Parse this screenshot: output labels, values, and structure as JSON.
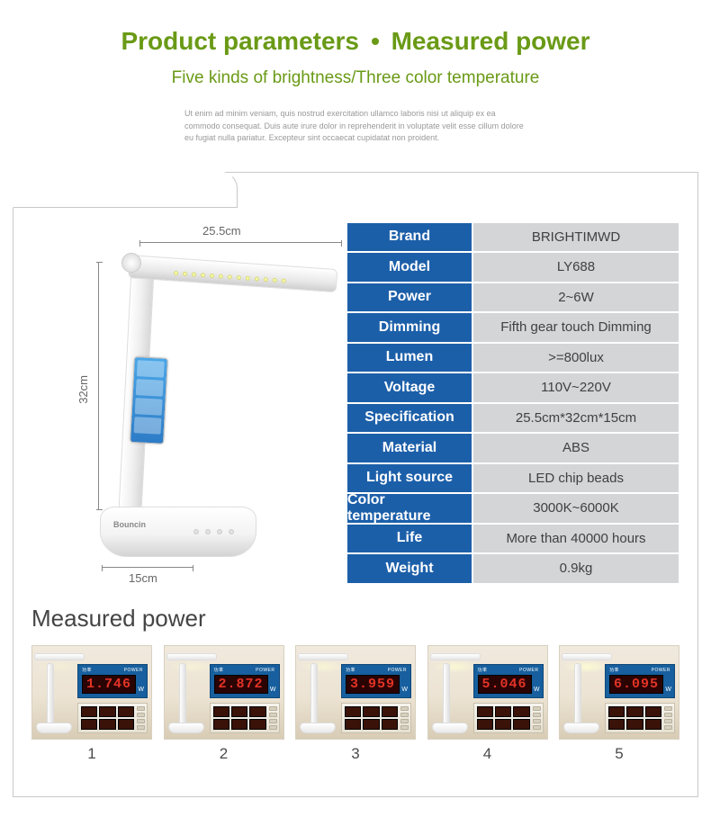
{
  "header": {
    "title_left": "Product parameters",
    "title_right": "Measured power",
    "title_color": "#6a9a16",
    "dot_color": "#6a9a16",
    "subtitle": "Five kinds of brightness/Three color temperature",
    "subtitle_color": "#6a9a16",
    "lorem": "Ut enim ad minim veniam, quis nostrud exercitation ullamco laboris nisi ut aliquip ex ea commodo consequat. Duis aute irure dolor in reprehenderit in voluptate velit esse cillum dolore eu fugiat nulla pariatur. Excepteur sint occaecat cupidatat non proident."
  },
  "dimensions": {
    "top": "25.5cm",
    "left": "32cm",
    "bottom": "15cm"
  },
  "spec": {
    "header_bg": "#1c5fa9",
    "header_fg": "#ffffff",
    "value_bg": "#d3d5d6",
    "value_fg": "#414141",
    "rows": [
      {
        "k": "Brand",
        "v": "BRIGHTIMWD"
      },
      {
        "k": "Model",
        "v": "LY688"
      },
      {
        "k": "Power",
        "v": "2~6W"
      },
      {
        "k": "Dimming",
        "v": "Fifth gear touch Dimming"
      },
      {
        "k": "Lumen",
        "v": ">=800lux"
      },
      {
        "k": "Voltage",
        "v": "110V~220V"
      },
      {
        "k": "Specification",
        "v": "25.5cm*32cm*15cm"
      },
      {
        "k": "Material",
        "v": "ABS"
      },
      {
        "k": "Light source",
        "v": "LED chip beads"
      },
      {
        "k": "Color temperature",
        "v": "3000K~6000K"
      },
      {
        "k": "Life",
        "v": "More than 40000 hours"
      },
      {
        "k": "Weight",
        "v": "0.9kg"
      }
    ]
  },
  "measured": {
    "title": "Measured power",
    "meter_label_left": "功率",
    "meter_label_right": "POWER",
    "digit_color": "#e23327",
    "items": [
      {
        "num": "1",
        "reading": "1.746",
        "glow": 0.35
      },
      {
        "num": "2",
        "reading": "2.872",
        "glow": 0.5
      },
      {
        "num": "3",
        "reading": "3.959",
        "glow": 0.65
      },
      {
        "num": "4",
        "reading": "5.046",
        "glow": 0.8
      },
      {
        "num": "5",
        "reading": "6.095",
        "glow": 0.95
      }
    ]
  }
}
